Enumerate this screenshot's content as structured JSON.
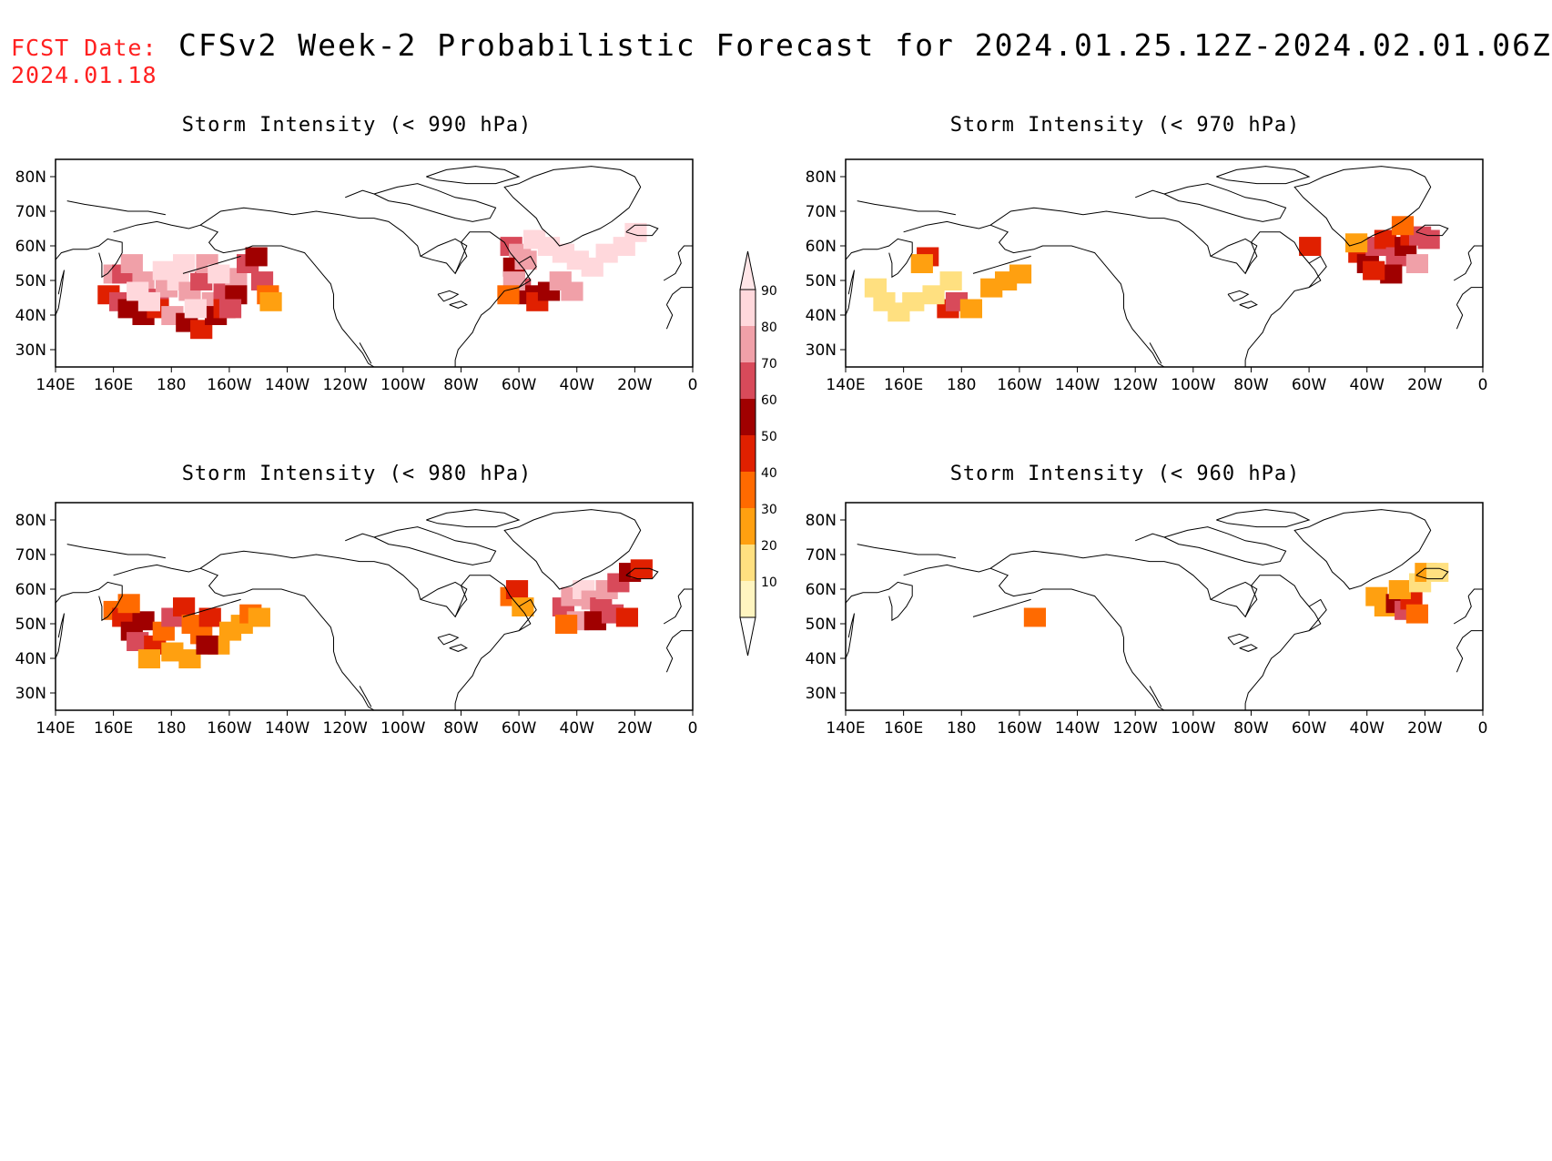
{
  "header": {
    "fcst_label": "FCST Date:",
    "fcst_date": "2024.01.18",
    "title": "CFSv2 Week-2 Probabilistic Forecast for 2024.01.25.12Z-2024.02.01.06Z"
  },
  "panels": [
    {
      "id": "p990",
      "title": "Storm Intensity (< 990 hPa)"
    },
    {
      "id": "p970",
      "title": "Storm Intensity (< 970 hPa)"
    },
    {
      "id": "p980",
      "title": "Storm Intensity (< 980 hPa)"
    },
    {
      "id": "p960",
      "title": "Storm Intensity (< 960 hPa)"
    }
  ],
  "axes": {
    "lat_labels": [
      "80N",
      "70N",
      "60N",
      "50N",
      "40N",
      "30N"
    ],
    "lon_labels": [
      "140E",
      "160E",
      "180",
      "160W",
      "140W",
      "120W",
      "100W",
      "80W",
      "60W",
      "40W",
      "20W",
      "0"
    ]
  },
  "colorbar": {
    "levels": [
      "10",
      "20",
      "30",
      "40",
      "50",
      "60",
      "70",
      "80",
      "90"
    ],
    "colors": [
      "#fff5c0",
      "#ffe080",
      "#ffa010",
      "#ff6a00",
      "#e02000",
      "#a00000",
      "#d84a5a",
      "#f0a0a8",
      "#ffd8dc"
    ]
  }
}
